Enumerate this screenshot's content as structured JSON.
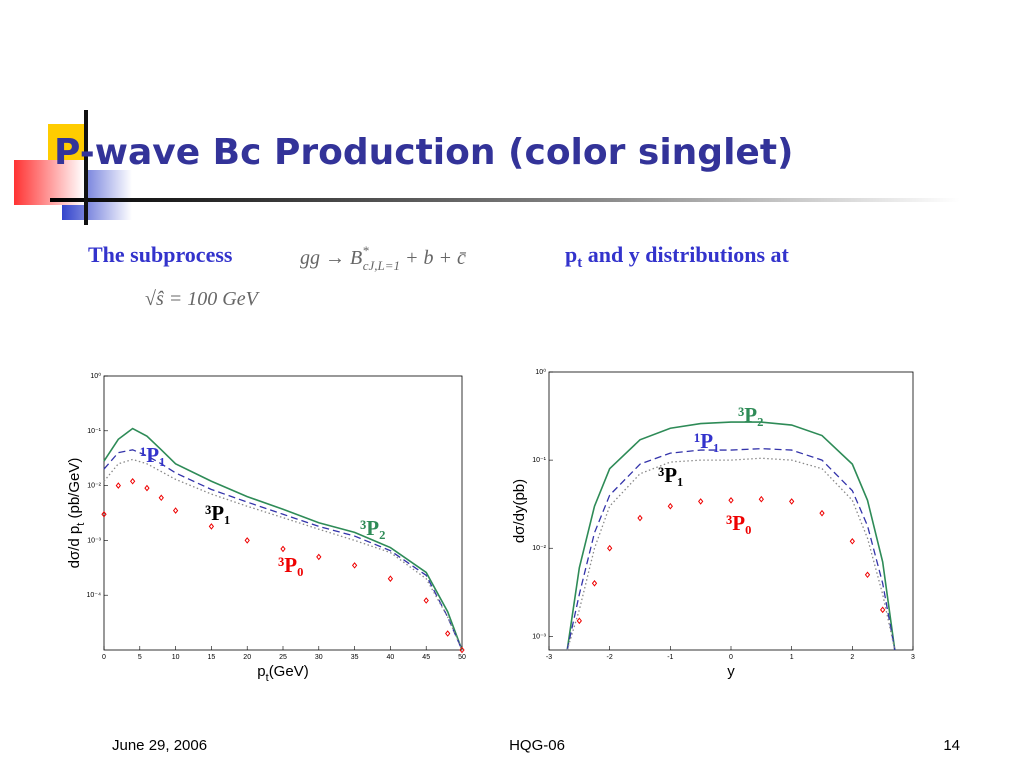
{
  "title": "P-wave Bc Production (color singlet)",
  "body": {
    "intro": "The subprocess",
    "formula": {
      "lhs": "gg → B",
      "sup": "*",
      "sub": "cJ,L=1",
      "rhs": " + b + c̄"
    },
    "dist": {
      "p": "p",
      "sub": "t",
      "rest": " and y distributions at"
    },
    "energy": "√ŝ = 100 GeV"
  },
  "footer": {
    "date": "June 29, 2006",
    "event": "HQG-06",
    "page": "14"
  },
  "chart_data": [
    {
      "type": "line",
      "log_y": true,
      "xlabel": [
        "p",
        "t",
        "(GeV)"
      ],
      "ylabel": [
        "dσ/d p",
        "t",
        " (pb/GeV)"
      ],
      "x": [
        0,
        2,
        4,
        6,
        8,
        10,
        15,
        20,
        25,
        30,
        35,
        40,
        45,
        48,
        50
      ],
      "xlim": [
        0,
        50
      ],
      "xticks": [
        0,
        5,
        10,
        15,
        20,
        25,
        30,
        35,
        40,
        45,
        50
      ],
      "ylim": [
        1e-05,
        1
      ],
      "yticks": [
        {
          "value": 0.0001,
          "label": "10⁻⁴"
        },
        {
          "value": 0.001,
          "label": "10⁻³"
        },
        {
          "value": 0.01,
          "label": "10⁻²"
        },
        {
          "value": 0.1,
          "label": "10⁻¹"
        },
        {
          "value": 1,
          "label": "10⁰"
        }
      ],
      "series": [
        {
          "name": "³P₂",
          "color": "#2e8b57",
          "label_color": "#2e8b57",
          "style": "solid",
          "values": [
            0.028,
            0.07,
            0.11,
            0.08,
            0.045,
            0.025,
            0.012,
            0.0063,
            0.0037,
            0.0021,
            0.0014,
            0.00074,
            0.00026,
            5e-05,
            1e-05
          ]
        },
        {
          "name": "¹P₁",
          "color": "#3333aa",
          "label_color": "#3333cc",
          "style": "dashed",
          "values": [
            0.02,
            0.04,
            0.045,
            0.035,
            0.025,
            0.017,
            0.0085,
            0.005,
            0.003,
            0.0018,
            0.0012,
            0.00065,
            0.00023,
            4e-05,
            1e-05
          ]
        },
        {
          "name": "³P₁",
          "color": "#888888",
          "label_color": "#000000",
          "style": "dotted",
          "values": [
            0.012,
            0.025,
            0.03,
            0.025,
            0.018,
            0.013,
            0.007,
            0.0042,
            0.0026,
            0.0016,
            0.001,
            0.0006,
            0.0002,
            4e-05,
            1e-05
          ]
        },
        {
          "name": "³P₀",
          "color": "#ee0000",
          "label_color": "#ee0000",
          "style": "markers",
          "values": [
            0.003,
            0.01,
            0.012,
            0.009,
            0.006,
            0.0035,
            0.0018,
            0.001,
            0.0007,
            0.0005,
            0.00035,
            0.0002,
            8e-05,
            2e-05,
            1e-05
          ]
        }
      ]
    },
    {
      "type": "line",
      "log_y": true,
      "xlabel": [
        "y"
      ],
      "ylabel": [
        "dσ/dy(pb)"
      ],
      "x": [
        -2.7,
        -2.5,
        -2.25,
        -2,
        -1.5,
        -1,
        -0.5,
        0,
        0.5,
        1,
        1.5,
        2,
        2.25,
        2.5,
        2.7
      ],
      "xlim": [
        -3,
        3
      ],
      "xticks": [
        -3,
        -2,
        -1,
        0,
        1,
        2,
        3
      ],
      "ylim": [
        0.0007,
        1
      ],
      "yticks": [
        {
          "value": 0.001,
          "label": "10⁻³"
        },
        {
          "value": 0.01,
          "label": "10⁻²"
        },
        {
          "value": 0.1,
          "label": "10⁻¹"
        },
        {
          "value": 1,
          "label": "10⁰"
        }
      ],
      "series": [
        {
          "name": "³P₂",
          "color": "#2e8b57",
          "label_color": "#2e8b57",
          "style": "solid",
          "values": [
            0.0007,
            0.006,
            0.03,
            0.08,
            0.17,
            0.23,
            0.26,
            0.27,
            0.27,
            0.25,
            0.19,
            0.09,
            0.035,
            0.007,
            0.0007
          ]
        },
        {
          "name": "¹P₁",
          "color": "#3333aa",
          "label_color": "#3333cc",
          "style": "dashed",
          "values": [
            0.0007,
            0.003,
            0.015,
            0.04,
            0.09,
            0.12,
            0.13,
            0.13,
            0.135,
            0.13,
            0.1,
            0.045,
            0.018,
            0.004,
            0.0007
          ]
        },
        {
          "name": "³P₁",
          "color": "#888888",
          "label_color": "#000000",
          "style": "dotted",
          "values": [
            0.0007,
            0.002,
            0.01,
            0.03,
            0.07,
            0.095,
            0.1,
            0.1,
            0.105,
            0.1,
            0.08,
            0.035,
            0.013,
            0.003,
            0.0007
          ]
        },
        {
          "name": "³P₀",
          "color": "#ee0000",
          "label_color": "#ee0000",
          "style": "markers",
          "values": [
            null,
            0.0015,
            0.004,
            0.01,
            0.022,
            0.03,
            0.034,
            0.035,
            0.036,
            0.034,
            0.025,
            0.012,
            0.005,
            0.002,
            null
          ]
        }
      ]
    }
  ]
}
